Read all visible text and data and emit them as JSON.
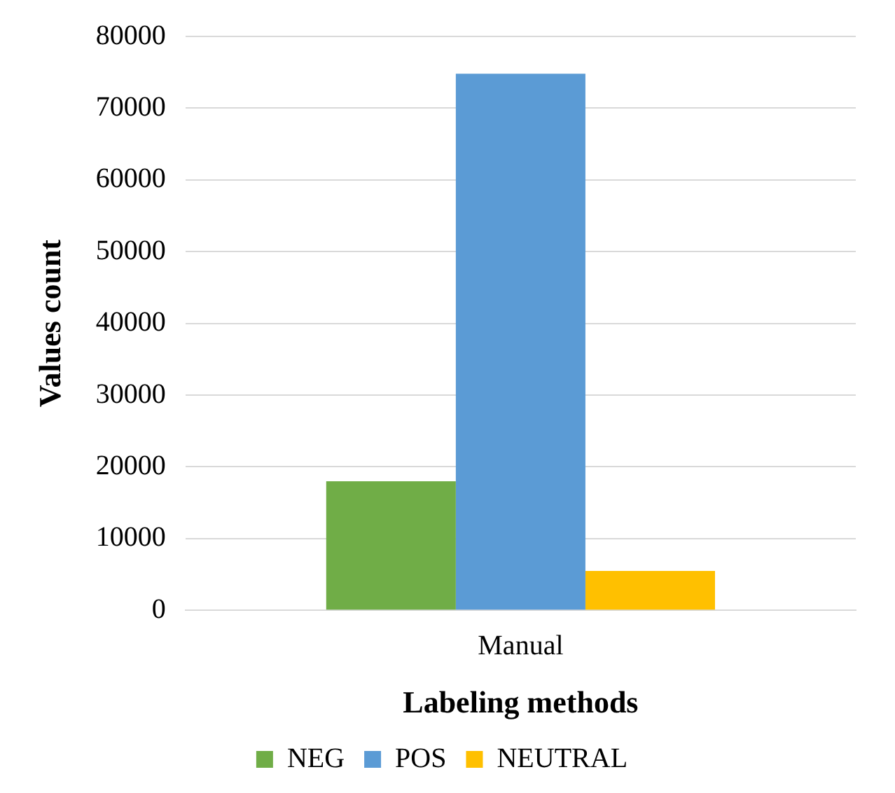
{
  "chart_data": {
    "type": "bar",
    "xlabel": "Labeling methods",
    "ylabel": "Values count",
    "categories": [
      "Manual"
    ],
    "series": [
      {
        "name": "NEG",
        "color": "#70ad47",
        "values": [
          18000
        ]
      },
      {
        "name": "POS",
        "color": "#5b9bd5",
        "values": [
          74800
        ]
      },
      {
        "name": "NEUTRAL",
        "color": "#ffc000",
        "values": [
          5500
        ]
      }
    ],
    "ylim": [
      0,
      80000
    ],
    "yticks": [
      0,
      10000,
      20000,
      30000,
      40000,
      50000,
      60000,
      70000,
      80000
    ],
    "grid": "y",
    "legend": "bottom"
  }
}
